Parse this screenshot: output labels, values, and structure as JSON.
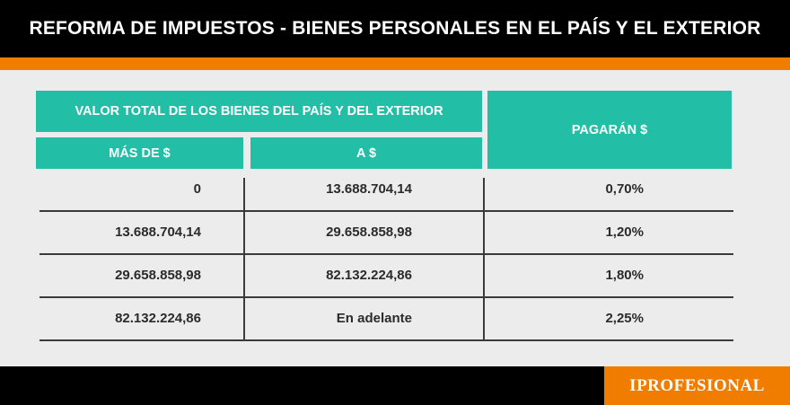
{
  "header": {
    "title": "REFORMA DE IMPUESTOS - BIENES PERSONALES EN EL PAÍS Y EL EXTERIOR"
  },
  "table": {
    "group_header": "VALOR TOTAL DE LOS BIENES DEL PAÍS Y DEL EXTERIOR",
    "columns": {
      "mas_de": "MÁS DE $",
      "a": "A $",
      "pagaran": "PAGARÁN $"
    },
    "rows": [
      {
        "mas_de": "0",
        "a": "13.688.704,14",
        "pagaran": "0,70%"
      },
      {
        "mas_de": "13.688.704,14",
        "a": "29.658.858,98",
        "pagaran": "1,20%"
      },
      {
        "mas_de": "29.658.858,98",
        "a": "82.132.224,86",
        "pagaran": "1,80%"
      },
      {
        "mas_de": "82.132.224,86",
        "a": "En adelante",
        "pagaran": "2,25%"
      }
    ]
  },
  "footer": {
    "brand": "IPROFESIONAL"
  },
  "colors": {
    "accent_teal": "#22bfa6",
    "accent_orange": "#f07d00",
    "header_bg": "#000000"
  }
}
